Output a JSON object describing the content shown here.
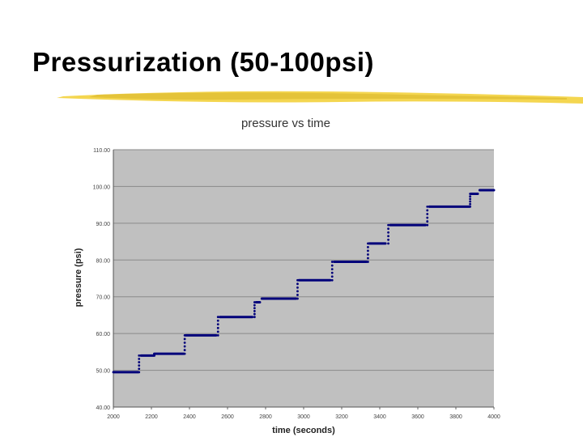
{
  "slide": {
    "title": "Pressurization (50-100psi)"
  },
  "colors": {
    "plot_bg": "#c0c0c0",
    "series": "#00007a",
    "rule": "#f3d23d"
  },
  "chart_data": {
    "type": "scatter",
    "title": "pressure vs time",
    "xlabel": "time (seconds)",
    "ylabel": "pressure (psi)",
    "xlim": [
      2000,
      4000
    ],
    "ylim": [
      40,
      110
    ],
    "xticks": [
      "2000",
      "2200",
      "2400",
      "2600",
      "2800",
      "3000",
      "3200",
      "3400",
      "3600",
      "3800",
      "4000"
    ],
    "yticks": [
      "40.00",
      "50.00",
      "60.00",
      "70.00",
      "80.00",
      "90.00",
      "100.00",
      "110.00"
    ],
    "grid": "horizontal",
    "series": [
      {
        "steps": [
          {
            "x_start": 2000,
            "x_end": 2130,
            "y": 49.5
          },
          {
            "x_start": 2145,
            "x_end": 2215,
            "y": 54.0
          },
          {
            "x_start": 2215,
            "x_end": 2370,
            "y": 54.5
          },
          {
            "x_start": 2380,
            "x_end": 2540,
            "y": 59.5
          },
          {
            "x_start": 2560,
            "x_end": 2730,
            "y": 64.5
          },
          {
            "x_start": 2750,
            "x_end": 2770,
            "y": 68.5
          },
          {
            "x_start": 2780,
            "x_end": 2960,
            "y": 69.5
          },
          {
            "x_start": 2975,
            "x_end": 3140,
            "y": 74.5
          },
          {
            "x_start": 3160,
            "x_end": 3330,
            "y": 79.5
          },
          {
            "x_start": 3345,
            "x_end": 3430,
            "y": 84.5
          },
          {
            "x_start": 3455,
            "x_end": 3640,
            "y": 89.5
          },
          {
            "x_start": 3660,
            "x_end": 3870,
            "y": 94.5
          },
          {
            "x_start": 3880,
            "x_end": 3915,
            "y": 98.0
          },
          {
            "x_start": 3925,
            "x_end": 4000,
            "y": 99.0
          }
        ],
        "transitions": [
          {
            "x": 2135,
            "y_from": 49.5,
            "y_to": 54.0
          },
          {
            "x": 2375,
            "y_from": 54.5,
            "y_to": 59.5
          },
          {
            "x": 2550,
            "y_from": 59.5,
            "y_to": 64.5
          },
          {
            "x": 2742,
            "y_from": 64.5,
            "y_to": 68.5
          },
          {
            "x": 2968,
            "y_from": 69.5,
            "y_to": 74.5
          },
          {
            "x": 3150,
            "y_from": 74.5,
            "y_to": 79.5
          },
          {
            "x": 3338,
            "y_from": 79.5,
            "y_to": 84.5
          },
          {
            "x": 3445,
            "y_from": 84.5,
            "y_to": 89.5
          },
          {
            "x": 3650,
            "y_from": 89.5,
            "y_to": 94.5
          },
          {
            "x": 3875,
            "y_from": 94.5,
            "y_to": 98.0
          }
        ]
      }
    ]
  }
}
